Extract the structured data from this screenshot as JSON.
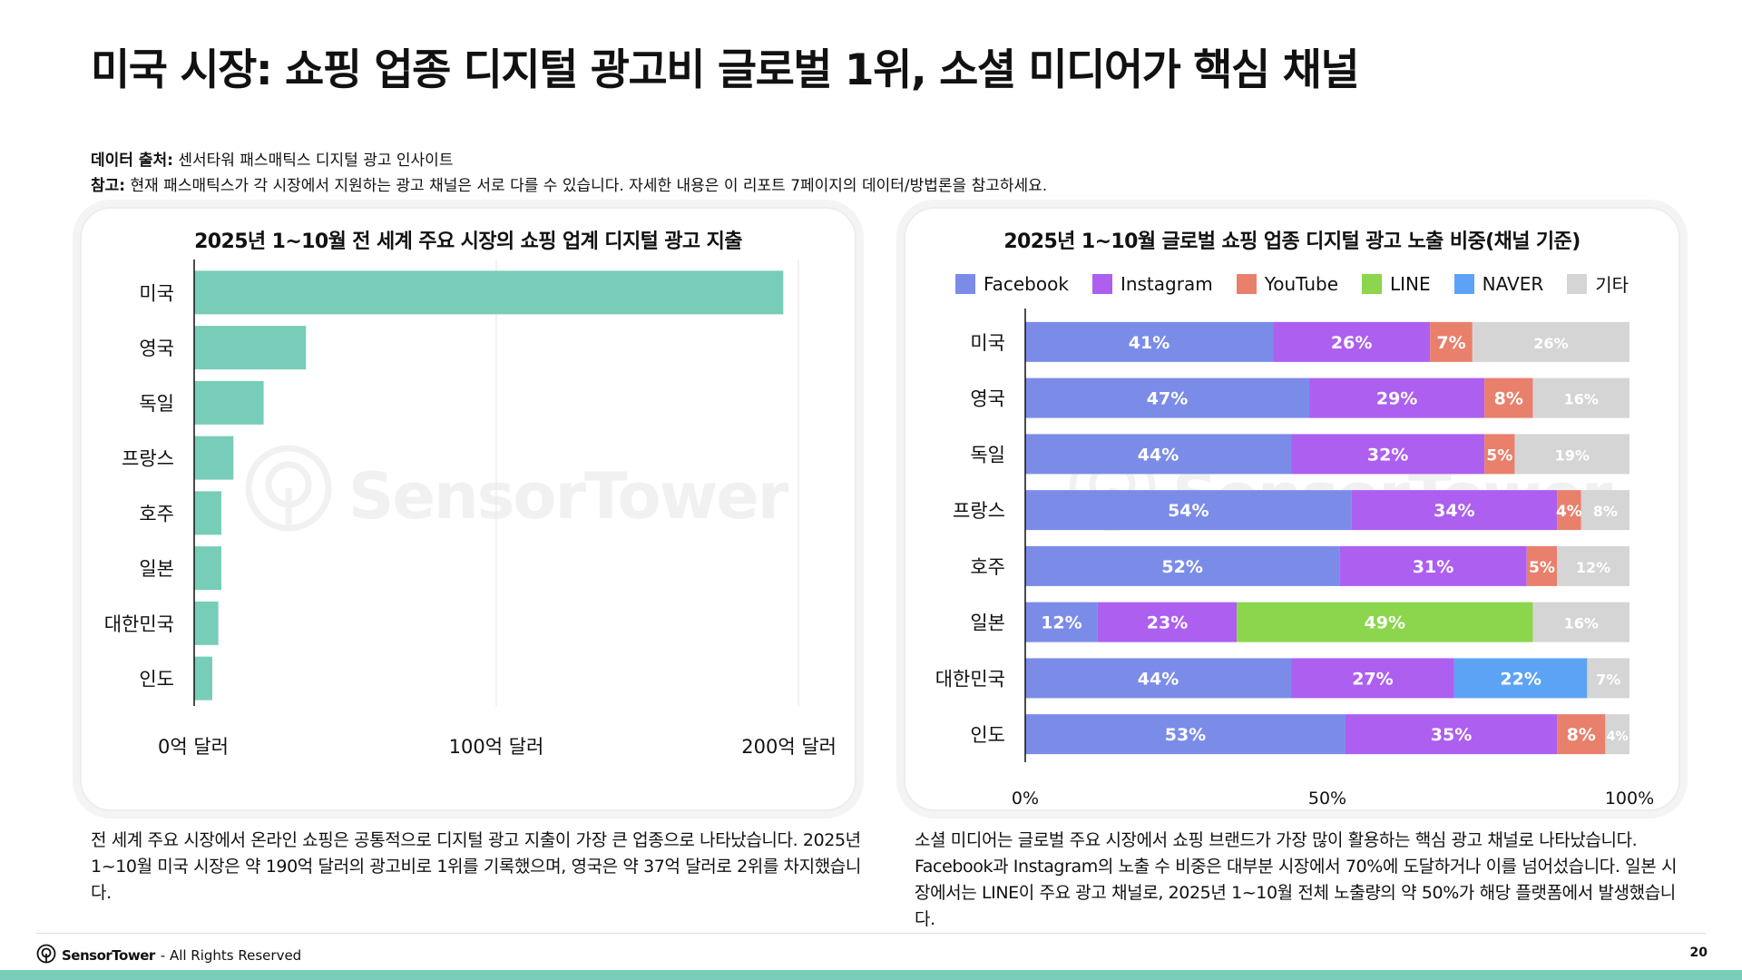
{
  "title": "미국 시장: 쇼핑 업종 디지털 광고비 글로벌 1위, 소셜 미디어가 핵심 채널",
  "source": {
    "label": "데이터 출처:",
    "text": " 센서타워 패스매틱스 디지털 광고 인사이트"
  },
  "note": {
    "label": "참고:",
    "text": " 현재 패스매틱스가 각 시장에서 지원하는 광고 채널은 서로 다를 수 있습니다. 자세한 내용은 이 리포트 7페이지의 데이터/방법론을 참고하세요."
  },
  "watermark": "SensorTower",
  "chart_data": [
    {
      "type": "bar",
      "orientation": "horizontal",
      "title": "2025년 1~10월 전 세계 주요 시장의 쇼핑 업계 디지털 광고 지출",
      "categories": [
        "미국",
        "영국",
        "독일",
        "프랑스",
        "호주",
        "일본",
        "대한민국",
        "인도"
      ],
      "values": [
        19.5,
        3.7,
        2.3,
        1.3,
        0.9,
        0.9,
        0.8,
        0.6
      ],
      "value_unit": "10억 달러",
      "xlim": [
        0,
        20
      ],
      "x_ticks": [
        0,
        10,
        20
      ],
      "x_tick_labels": [
        "0억 달러",
        "100억 달러",
        "200억 달러"
      ],
      "grid": "vertical",
      "color": "#77cdb8"
    },
    {
      "type": "bar",
      "orientation": "horizontal",
      "stacked": true,
      "title": "2025년 1~10월 글로벌 쇼핑 업종 디지털 광고 노출 비중(채널 기준)",
      "categories": [
        "미국",
        "영국",
        "독일",
        "프랑스",
        "호주",
        "일본",
        "대한민국",
        "인도"
      ],
      "legend_position": "top",
      "x_ticks": [
        0,
        50,
        100
      ],
      "x_tick_labels": [
        "0%",
        "50%",
        "100%"
      ],
      "series": [
        {
          "name": "Facebook",
          "color": "#7b8ce8",
          "values": [
            41,
            47,
            44,
            54,
            52,
            12,
            44,
            53
          ]
        },
        {
          "name": "Instagram",
          "color": "#ad5ff0",
          "values": [
            26,
            29,
            32,
            34,
            31,
            23,
            27,
            35
          ]
        },
        {
          "name": "YouTube",
          "color": "#e8806c",
          "values": [
            7,
            8,
            5,
            4,
            5,
            0,
            0,
            8
          ]
        },
        {
          "name": "LINE",
          "color": "#8bd64c",
          "values": [
            0,
            0,
            0,
            0,
            0,
            49,
            0,
            0
          ]
        },
        {
          "name": "NAVER",
          "color": "#5da3f5",
          "values": [
            0,
            0,
            0,
            0,
            0,
            0,
            22,
            0
          ]
        },
        {
          "name": "기타",
          "color": "#d5d5d5",
          "values": [
            26,
            16,
            19,
            8,
            12,
            16,
            7,
            4
          ]
        }
      ]
    }
  ],
  "desc_left": "전 세계 주요 시장에서 온라인 쇼핑은 공통적으로 디지털 광고 지출이 가장 큰 업종으로 나타났습니다. 2025년 1~10월 미국 시장은 약 190억 달러의 광고비로 1위를 기록했으며, 영국은 약 37억 달러로 2위를 차지했습니다.",
  "desc_right": "소셜 미디어는 글로벌 주요 시장에서 쇼핑 브랜드가 가장 많이 활용하는 핵심 광고 채널로 나타났습니다. Facebook과 Instagram의 노출 수 비중은 대부분 시장에서 70%에 도달하거나 이를 넘어섰습니다. 일본 시장에서는 LINE이 주요 광고 채널로, 2025년 1~10월 전체 노출량의 약 50%가 해당 플랫폼에서 발생했습니다.",
  "footer": {
    "brand": "SensorTower",
    "rights": "- All Rights Reserved",
    "page": "20"
  }
}
